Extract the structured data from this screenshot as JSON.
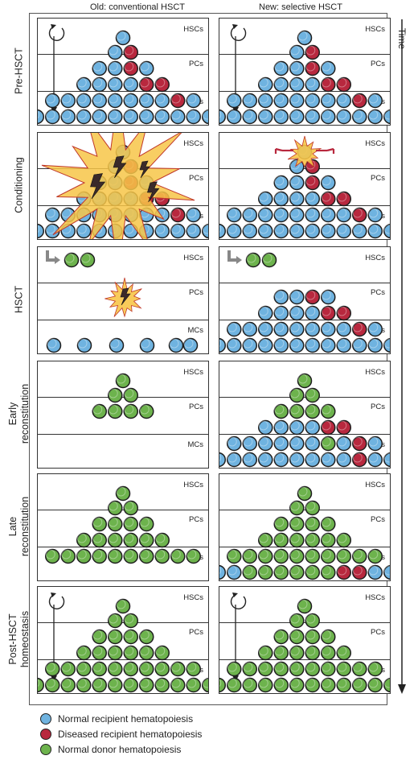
{
  "columns": {
    "old": "Old: conventional HSCT",
    "new": "New: selective HSCT"
  },
  "tiers": {
    "hsc": "HSCs",
    "pc": "PCs",
    "mc": "MCs"
  },
  "stages": [
    "Pre-HSCT",
    "Conditioning",
    "HSCT",
    "Early\nreconstitution",
    "Late\nreconstitution",
    "Post-HSCT\nhomeostasis"
  ],
  "time_label": "Time",
  "legend": [
    {
      "label": "Normal recipient hematopoiesis",
      "color": "#6fb3e0"
    },
    {
      "label": "Diseased recipient hematopoiesis",
      "color": "#b8283e"
    },
    {
      "label": "Normal donor hematopoiesis",
      "color": "#6db34d"
    }
  ],
  "colors": {
    "recipient": "#6fb3e0",
    "diseased": "#b8283e",
    "donor": "#6db34d",
    "explosion": "#f7c548",
    "bolt": "#3a2a2a"
  },
  "panels": [
    {
      "stage": 0,
      "col": "old",
      "rows": [
        [
          "b"
        ],
        [
          "b",
          "r"
        ],
        [
          "b",
          "b",
          "r",
          "b"
        ],
        [
          "b",
          "b",
          "b",
          "b",
          "r",
          "r"
        ],
        [
          "b",
          "b",
          "b",
          "b",
          "b",
          "b",
          "b",
          "b",
          "r",
          "b"
        ],
        [
          "b",
          "b",
          "b",
          "b",
          "b",
          "b",
          "b",
          "b",
          "b",
          "b",
          "b",
          "b"
        ]
      ],
      "cycle": true
    },
    {
      "stage": 0,
      "col": "new",
      "rows": [
        [
          "b"
        ],
        [
          "b",
          "r"
        ],
        [
          "b",
          "b",
          "r",
          "b"
        ],
        [
          "b",
          "b",
          "b",
          "b",
          "r",
          "r"
        ],
        [
          "b",
          "b",
          "b",
          "b",
          "b",
          "b",
          "b",
          "b",
          "r",
          "b"
        ],
        [
          "b",
          "b",
          "b",
          "b",
          "b",
          "b",
          "b",
          "b",
          "b",
          "b",
          "b",
          "b"
        ]
      ],
      "cycle": true
    },
    {
      "stage": 1,
      "col": "old",
      "rows": [
        [
          "b"
        ],
        [
          "b",
          "r"
        ],
        [
          "b",
          "b",
          "r",
          "b"
        ],
        [
          "b",
          "b",
          "b",
          "b",
          "r",
          "r"
        ],
        [
          "b",
          "b",
          "b",
          "b",
          "b",
          "b",
          "b",
          "b",
          "r",
          "b"
        ],
        [
          "b",
          "b",
          "b",
          "b",
          "b",
          "b",
          "b",
          "b",
          "b",
          "b",
          "b",
          "b"
        ]
      ],
      "explosion": "big"
    },
    {
      "stage": 1,
      "col": "new",
      "rows": [
        [
          "b"
        ],
        [
          "b",
          "r"
        ],
        [
          "b",
          "b",
          "r",
          "b"
        ],
        [
          "b",
          "b",
          "b",
          "b",
          "r",
          "r"
        ],
        [
          "b",
          "b",
          "b",
          "b",
          "b",
          "b",
          "b",
          "b",
          "r",
          "b"
        ],
        [
          "b",
          "b",
          "b",
          "b",
          "b",
          "b",
          "b",
          "b",
          "b",
          "b",
          "b",
          "b"
        ]
      ],
      "explosion": "small"
    },
    {
      "stage": 2,
      "col": "old",
      "rows": [
        [],
        [],
        [],
        [],
        [],
        []
      ],
      "scatter": true,
      "donors": true,
      "explosion": "mini"
    },
    {
      "stage": 2,
      "col": "new",
      "rows": [
        [],
        [],
        [
          "b",
          "b",
          "r",
          "b"
        ],
        [
          "b",
          "b",
          "b",
          "b",
          "r",
          "r"
        ],
        [
          "b",
          "b",
          "b",
          "b",
          "b",
          "b",
          "b",
          "b",
          "r",
          "b"
        ],
        [
          "b",
          "b",
          "b",
          "b",
          "b",
          "b",
          "b",
          "b",
          "b",
          "b",
          "b",
          "b"
        ]
      ],
      "donors": true
    },
    {
      "stage": 3,
      "col": "old",
      "rows": [
        [
          "g"
        ],
        [
          "g",
          "g"
        ],
        [
          "g",
          "g",
          "g",
          "g"
        ],
        [],
        [],
        []
      ]
    },
    {
      "stage": 3,
      "col": "new",
      "rows": [
        [
          "g"
        ],
        [
          "g",
          "g"
        ],
        [
          "g",
          "g",
          "g",
          "g"
        ],
        [
          "b",
          "b",
          "b",
          "b",
          "r",
          "r"
        ],
        [
          "b",
          "b",
          "b",
          "b",
          "b",
          "b",
          "g",
          "b",
          "r",
          "b"
        ],
        [
          "b",
          "b",
          "b",
          "b",
          "b",
          "b",
          "b",
          "b",
          "b",
          "r",
          "b",
          "b"
        ]
      ]
    },
    {
      "stage": 4,
      "col": "old",
      "rows": [
        [
          "g"
        ],
        [
          "g",
          "g"
        ],
        [
          "g",
          "g",
          "g",
          "g"
        ],
        [
          "g",
          "g",
          "g",
          "g",
          "g",
          "g"
        ],
        [
          "g",
          "g",
          "g",
          "g",
          "g",
          "g",
          "g",
          "g",
          "g",
          "g"
        ],
        []
      ]
    },
    {
      "stage": 4,
      "col": "new",
      "rows": [
        [
          "g"
        ],
        [
          "g",
          "g"
        ],
        [
          "g",
          "g",
          "g",
          "g"
        ],
        [
          "g",
          "g",
          "g",
          "g",
          "g",
          "g"
        ],
        [
          "g",
          "g",
          "g",
          "g",
          "g",
          "g",
          "g",
          "g",
          "g",
          "g"
        ],
        [
          "b",
          "b",
          "g",
          "g",
          "g",
          "g",
          "g",
          "g",
          "r",
          "r",
          "b",
          "b"
        ]
      ]
    },
    {
      "stage": 5,
      "col": "old",
      "rows": [
        [
          "g"
        ],
        [
          "g",
          "g"
        ],
        [
          "g",
          "g",
          "g",
          "g"
        ],
        [
          "g",
          "g",
          "g",
          "g",
          "g",
          "g"
        ],
        [
          "g",
          "g",
          "g",
          "g",
          "g",
          "g",
          "g",
          "g",
          "g",
          "g"
        ],
        [
          "g",
          "g",
          "g",
          "g",
          "g",
          "g",
          "g",
          "g",
          "g",
          "g",
          "g",
          "g"
        ]
      ],
      "cycle": true
    },
    {
      "stage": 5,
      "col": "new",
      "rows": [
        [
          "g"
        ],
        [
          "g",
          "g"
        ],
        [
          "g",
          "g",
          "g",
          "g"
        ],
        [
          "g",
          "g",
          "g",
          "g",
          "g",
          "g"
        ],
        [
          "g",
          "g",
          "g",
          "g",
          "g",
          "g",
          "g",
          "g",
          "g",
          "g"
        ],
        [
          "g",
          "g",
          "g",
          "g",
          "g",
          "g",
          "g",
          "g",
          "g",
          "g",
          "g",
          "g"
        ]
      ],
      "cycle": true
    }
  ]
}
